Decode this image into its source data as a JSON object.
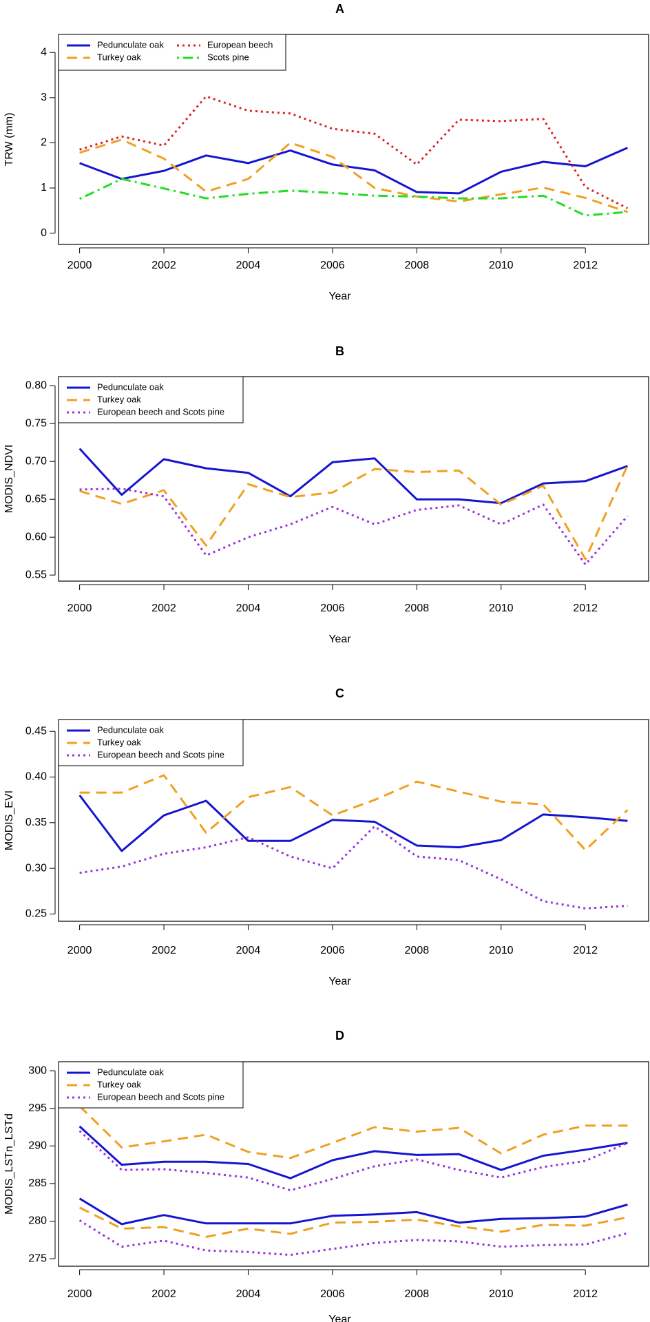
{
  "chart_data": [
    {
      "type": "line",
      "title": "A",
      "xlabel": "Year",
      "ylabel": "TRW (mm)",
      "x": [
        2000,
        2001,
        2002,
        2003,
        2004,
        2005,
        2006,
        2007,
        2008,
        2009,
        2010,
        2011,
        2012,
        2013
      ],
      "xlim": [
        1999.5,
        2013.5
      ],
      "ylim": [
        -0.25,
        4.4
      ],
      "xticks": [
        2000,
        2002,
        2004,
        2006,
        2008,
        2010,
        2012
      ],
      "yticks": [
        0,
        1,
        2,
        3,
        4
      ],
      "ytick_labels": [
        "0",
        "1",
        "2",
        "3",
        "4"
      ],
      "legend_position": "top-left",
      "legend_columns": 2,
      "series": [
        {
          "name": "Pedunculate oak",
          "color": "#1515d0",
          "style": "solid",
          "values": [
            1.55,
            1.2,
            1.38,
            1.72,
            1.55,
            1.83,
            1.52,
            1.39,
            0.91,
            0.88,
            1.36,
            1.58,
            1.48,
            1.89
          ]
        },
        {
          "name": "Turkey oak",
          "color": "#f0a020",
          "style": "dashed",
          "values": [
            1.78,
            2.07,
            1.65,
            0.92,
            1.2,
            2.0,
            1.69,
            1.0,
            0.81,
            0.7,
            0.86,
            1.01,
            0.78,
            0.47
          ]
        },
        {
          "name": "European beech",
          "color": "#dd2222",
          "style": "dotted",
          "values": [
            1.85,
            2.14,
            1.94,
            3.03,
            2.71,
            2.65,
            2.31,
            2.2,
            1.52,
            2.51,
            2.48,
            2.53,
            1.02,
            0.55
          ]
        },
        {
          "name": "Scots pine",
          "color": "#22dd22",
          "style": "dotdash",
          "values": [
            0.76,
            1.2,
            0.99,
            0.77,
            0.87,
            0.94,
            0.89,
            0.83,
            0.81,
            0.77,
            0.77,
            0.83,
            0.39,
            0.47
          ]
        }
      ]
    },
    {
      "type": "line",
      "title": "B",
      "xlabel": "Year",
      "ylabel": "MODIS_NDVI",
      "x": [
        2000,
        2001,
        2002,
        2003,
        2004,
        2005,
        2006,
        2007,
        2008,
        2009,
        2010,
        2011,
        2012,
        2013
      ],
      "xlim": [
        1999.5,
        2013.5
      ],
      "ylim": [
        0.542,
        0.812
      ],
      "xticks": [
        2000,
        2002,
        2004,
        2006,
        2008,
        2010,
        2012
      ],
      "yticks": [
        0.55,
        0.6,
        0.65,
        0.7,
        0.75,
        0.8
      ],
      "ytick_labels": [
        "0.55",
        "0.60",
        "0.65",
        "0.70",
        "0.75",
        "0.80"
      ],
      "legend_position": "top-left",
      "legend_columns": 1,
      "series": [
        {
          "name": "Pedunculate oak",
          "color": "#1515d0",
          "style": "solid",
          "values": [
            0.717,
            0.656,
            0.703,
            0.691,
            0.685,
            0.654,
            0.699,
            0.704,
            0.65,
            0.65,
            0.645,
            0.671,
            0.674,
            0.694
          ]
        },
        {
          "name": "Turkey oak",
          "color": "#f0a020",
          "style": "dashed",
          "values": [
            0.661,
            0.644,
            0.662,
            0.589,
            0.67,
            0.653,
            0.659,
            0.69,
            0.686,
            0.688,
            0.643,
            0.668,
            0.571,
            0.695
          ]
        },
        {
          "name": "European beech and Scots pine",
          "color": "#9933dd",
          "style": "dotted",
          "values": [
            0.663,
            0.664,
            0.654,
            0.576,
            0.6,
            0.617,
            0.64,
            0.617,
            0.636,
            0.642,
            0.617,
            0.643,
            0.564,
            0.628
          ]
        }
      ]
    },
    {
      "type": "line",
      "title": "C",
      "xlabel": "Year",
      "ylabel": "MODIS_EVI",
      "x": [
        2000,
        2001,
        2002,
        2003,
        2004,
        2005,
        2006,
        2007,
        2008,
        2009,
        2010,
        2011,
        2012,
        2013
      ],
      "xlim": [
        1999.5,
        2013.5
      ],
      "ylim": [
        0.242,
        0.463
      ],
      "xticks": [
        2000,
        2002,
        2004,
        2006,
        2008,
        2010,
        2012
      ],
      "yticks": [
        0.25,
        0.3,
        0.35,
        0.4,
        0.45
      ],
      "ytick_labels": [
        "0.25",
        "0.30",
        "0.35",
        "0.40",
        "0.45"
      ],
      "legend_position": "top-left",
      "legend_columns": 1,
      "series": [
        {
          "name": "Pedunculate oak",
          "color": "#1515d0",
          "style": "solid",
          "values": [
            0.38,
            0.319,
            0.358,
            0.374,
            0.33,
            0.33,
            0.353,
            0.351,
            0.325,
            0.323,
            0.331,
            0.359,
            0.356,
            0.352
          ]
        },
        {
          "name": "Turkey oak",
          "color": "#f0a020",
          "style": "dashed",
          "values": [
            0.383,
            0.383,
            0.402,
            0.339,
            0.378,
            0.389,
            0.358,
            0.375,
            0.395,
            0.384,
            0.373,
            0.37,
            0.32,
            0.364
          ]
        },
        {
          "name": "European beech and Scots pine",
          "color": "#9933dd",
          "style": "dotted",
          "values": [
            0.295,
            0.302,
            0.316,
            0.323,
            0.334,
            0.313,
            0.3,
            0.346,
            0.313,
            0.309,
            0.288,
            0.264,
            0.256,
            0.259
          ]
        }
      ]
    },
    {
      "type": "line",
      "title": "D",
      "xlabel": "Year",
      "ylabel": "MODIS_LSTn_LSTd",
      "x": [
        2000,
        2001,
        2002,
        2003,
        2004,
        2005,
        2006,
        2007,
        2008,
        2009,
        2010,
        2011,
        2012,
        2013
      ],
      "xlim": [
        1999.5,
        2013.5
      ],
      "ylim": [
        274.0,
        301.2
      ],
      "xticks": [
        2000,
        2002,
        2004,
        2006,
        2008,
        2010,
        2012
      ],
      "yticks": [
        275,
        280,
        285,
        290,
        295,
        300
      ],
      "ytick_labels": [
        "275",
        "280",
        "285",
        "290",
        "295",
        "300"
      ],
      "legend_position": "top-left",
      "legend_columns": 1,
      "series": [
        {
          "name": "Pedunculate oak",
          "color": "#1515d0",
          "style": "solid",
          "values": [
            292.6,
            287.5,
            287.9,
            287.9,
            287.6,
            285.7,
            288.1,
            289.3,
            288.8,
            288.9,
            286.8,
            288.7,
            289.5,
            290.4
          ]
        },
        {
          "color": "#1515d0",
          "style": "solid",
          "values": [
            283.0,
            279.6,
            280.8,
            279.7,
            279.7,
            279.7,
            280.7,
            280.9,
            281.2,
            279.8,
            280.3,
            280.4,
            280.6,
            282.2
          ]
        },
        {
          "name": "Turkey oak",
          "color": "#f0a020",
          "style": "dashed",
          "values": [
            295.3,
            289.8,
            290.6,
            291.5,
            289.2,
            288.4,
            290.4,
            292.5,
            291.9,
            292.4,
            289.0,
            291.5,
            292.7,
            292.7
          ]
        },
        {
          "color": "#f0a020",
          "style": "dashed",
          "values": [
            281.8,
            279.0,
            279.2,
            277.9,
            279.0,
            278.3,
            279.8,
            279.9,
            280.2,
            279.3,
            278.6,
            279.5,
            279.4,
            280.5
          ]
        },
        {
          "name": "European beech and Scots pine",
          "color": "#9933dd",
          "style": "dotted",
          "values": [
            292.0,
            286.8,
            286.9,
            286.4,
            285.8,
            284.1,
            285.6,
            287.3,
            288.2,
            286.8,
            285.8,
            287.2,
            288.0,
            290.4
          ]
        },
        {
          "color": "#9933dd",
          "style": "dotted",
          "values": [
            280.1,
            276.6,
            277.4,
            276.1,
            275.9,
            275.5,
            276.3,
            277.1,
            277.5,
            277.3,
            276.6,
            276.8,
            276.9,
            278.4
          ]
        }
      ]
    }
  ]
}
